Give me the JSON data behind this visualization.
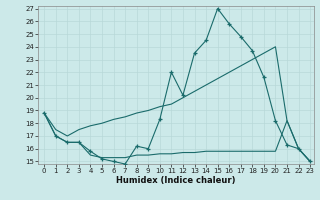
{
  "background_color": "#cce9e9",
  "grid_color": "#b8d8d8",
  "line_color": "#1a6b6b",
  "xlim": [
    0,
    23
  ],
  "ylim": [
    15,
    27
  ],
  "xticks": [
    0,
    1,
    2,
    3,
    4,
    5,
    6,
    7,
    8,
    9,
    10,
    11,
    12,
    13,
    14,
    15,
    16,
    17,
    18,
    19,
    20,
    21,
    22,
    23
  ],
  "yticks": [
    15,
    16,
    17,
    18,
    19,
    20,
    21,
    22,
    23,
    24,
    25,
    26,
    27
  ],
  "line1_x": [
    0,
    1,
    2,
    3,
    4,
    5,
    6,
    7,
    8,
    9,
    10,
    11,
    12,
    13,
    14,
    15,
    16,
    17,
    18,
    19,
    20,
    21,
    22,
    23
  ],
  "line1_y": [
    18.8,
    17.0,
    16.5,
    16.5,
    15.8,
    15.2,
    15.0,
    14.8,
    16.2,
    16.0,
    18.3,
    22.0,
    20.2,
    23.5,
    24.5,
    27.0,
    25.8,
    24.8,
    23.7,
    21.6,
    18.2,
    16.3,
    16.0,
    15.0
  ],
  "line2_x": [
    0,
    1,
    2,
    3,
    4,
    5,
    6,
    7,
    8,
    9,
    10,
    11,
    12,
    13,
    14,
    15,
    16,
    17,
    18,
    19,
    20,
    21,
    22,
    23
  ],
  "line2_y": [
    18.8,
    17.5,
    17.0,
    17.5,
    17.8,
    18.0,
    18.3,
    18.5,
    18.8,
    19.0,
    19.3,
    19.5,
    20.0,
    20.5,
    21.0,
    21.5,
    22.0,
    22.5,
    23.0,
    23.5,
    24.0,
    18.2,
    16.0,
    15.0
  ],
  "line3_x": [
    0,
    1,
    2,
    3,
    4,
    5,
    6,
    7,
    8,
    9,
    10,
    11,
    12,
    13,
    14,
    15,
    16,
    17,
    18,
    19,
    20,
    21,
    22,
    23
  ],
  "line3_y": [
    18.8,
    17.0,
    16.5,
    16.5,
    15.5,
    15.3,
    15.3,
    15.3,
    15.5,
    15.5,
    15.6,
    15.6,
    15.7,
    15.7,
    15.8,
    15.8,
    15.8,
    15.8,
    15.8,
    15.8,
    15.8,
    18.2,
    16.0,
    15.0
  ],
  "xlabel": "Humidex (Indice chaleur)"
}
